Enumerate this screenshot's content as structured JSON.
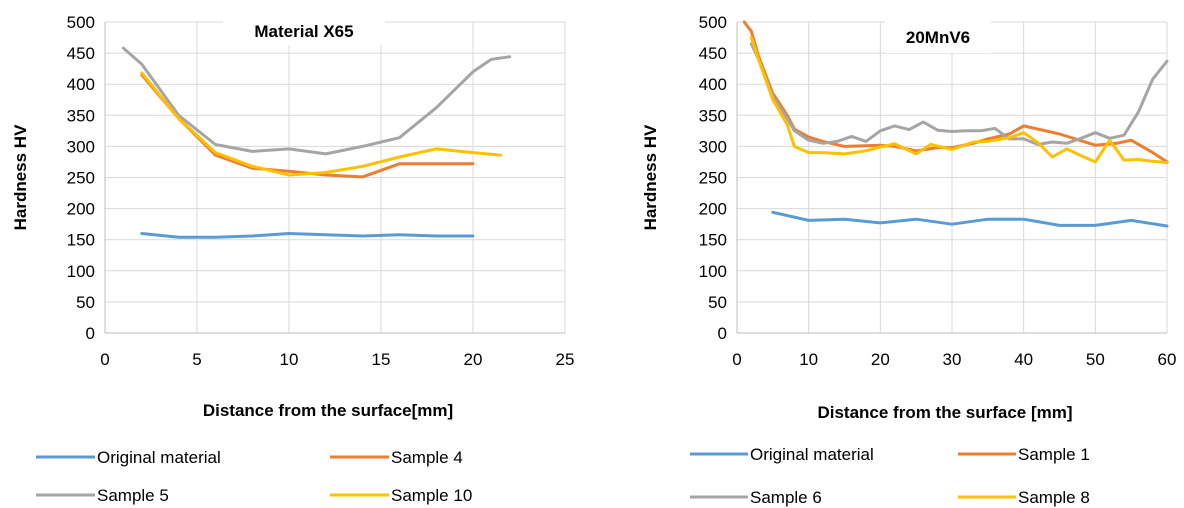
{
  "chart_data": [
    {
      "type": "line",
      "title": "Material X65",
      "xlabel": "Distance from the surface[mm]",
      "ylabel": "Hardness HV",
      "xlim": [
        0,
        25
      ],
      "ylim": [
        0,
        500
      ],
      "xticks": [
        0,
        5,
        10,
        15,
        20,
        25
      ],
      "yticks": [
        0,
        50,
        100,
        150,
        200,
        250,
        300,
        350,
        400,
        450,
        500
      ],
      "grid": true,
      "legend_position": "bottom",
      "series": [
        {
          "name": "Original material",
          "color": "#5B9BD5",
          "x": [
            2,
            4,
            6,
            8,
            10,
            12,
            14,
            16,
            18,
            20
          ],
          "y": [
            160,
            154,
            154,
            156,
            160,
            158,
            156,
            158,
            156,
            156
          ]
        },
        {
          "name": "Sample 4",
          "color": "#ED7D31",
          "x": [
            2,
            4,
            6,
            8,
            10,
            12,
            14,
            16,
            18,
            20
          ],
          "y": [
            415,
            345,
            286,
            265,
            260,
            254,
            251,
            272,
            272,
            272
          ]
        },
        {
          "name": "Sample 5",
          "color": "#A5A5A5",
          "x": [
            1,
            2,
            4,
            6,
            8,
            10,
            12,
            14,
            16,
            18,
            20,
            21,
            22
          ],
          "y": [
            458,
            432,
            350,
            303,
            292,
            296,
            288,
            300,
            314,
            362,
            420,
            440,
            444
          ]
        },
        {
          "name": "Sample 10",
          "color": "#FFC000",
          "x": [
            2,
            4,
            6,
            8,
            10,
            12,
            14,
            16,
            18,
            20,
            21.5
          ],
          "y": [
            418,
            345,
            290,
            268,
            254,
            258,
            268,
            283,
            296,
            290,
            286
          ]
        }
      ]
    },
    {
      "type": "line",
      "title": "20MnV6",
      "xlabel": "Distance from the surface [mm]",
      "ylabel": "Hardness HV",
      "xlim": [
        0,
        60
      ],
      "ylim": [
        0,
        500
      ],
      "xticks": [
        0,
        10,
        20,
        30,
        40,
        50,
        60
      ],
      "yticks": [
        0,
        50,
        100,
        150,
        200,
        250,
        300,
        350,
        400,
        450,
        500
      ],
      "grid": true,
      "legend_position": "bottom",
      "series": [
        {
          "name": "Original material",
          "color": "#5B9BD5",
          "x": [
            5,
            10,
            15,
            20,
            25,
            30,
            35,
            40,
            45,
            50,
            55,
            60
          ],
          "y": [
            194,
            181,
            183,
            177,
            183,
            175,
            183,
            183,
            173,
            173,
            181,
            172
          ]
        },
        {
          "name": "Sample 1",
          "color": "#ED7D31",
          "x": [
            1,
            2,
            3,
            5,
            7,
            8,
            10,
            12,
            15,
            18,
            20,
            22,
            25,
            28,
            30,
            33,
            35,
            38,
            40,
            45,
            50,
            53,
            55,
            58,
            60
          ],
          "y": [
            500,
            485,
            445,
            385,
            350,
            328,
            315,
            308,
            300,
            301,
            302,
            300,
            293,
            298,
            298,
            305,
            312,
            320,
            333,
            320,
            302,
            305,
            310,
            290,
            275
          ]
        },
        {
          "name": "Sample 6",
          "color": "#A5A5A5",
          "x": [
            2,
            3,
            5,
            7,
            8,
            10,
            12,
            14,
            16,
            18,
            20,
            22,
            24,
            26,
            28,
            30,
            32,
            34,
            36,
            38,
            40,
            42,
            44,
            46,
            48,
            50,
            52,
            54,
            56,
            58,
            60
          ],
          "y": [
            465,
            440,
            380,
            345,
            325,
            310,
            305,
            308,
            316,
            308,
            325,
            333,
            327,
            339,
            326,
            324,
            325,
            325,
            329,
            312,
            312,
            303,
            307,
            305,
            313,
            322,
            313,
            318,
            355,
            408,
            437
          ]
        },
        {
          "name": "Sample 8",
          "color": "#FFC000",
          "x": [
            2,
            3,
            5,
            7,
            8,
            10,
            12,
            15,
            18,
            20,
            22,
            25,
            27,
            30,
            33,
            35,
            38,
            40,
            42,
            44,
            46,
            48,
            50,
            52,
            54,
            56,
            58,
            60
          ],
          "y": [
            475,
            440,
            375,
            335,
            300,
            290,
            290,
            288,
            293,
            299,
            304,
            288,
            303,
            295,
            307,
            308,
            314,
            322,
            306,
            283,
            296,
            285,
            275,
            310,
            278,
            279,
            276,
            274
          ]
        }
      ]
    }
  ]
}
